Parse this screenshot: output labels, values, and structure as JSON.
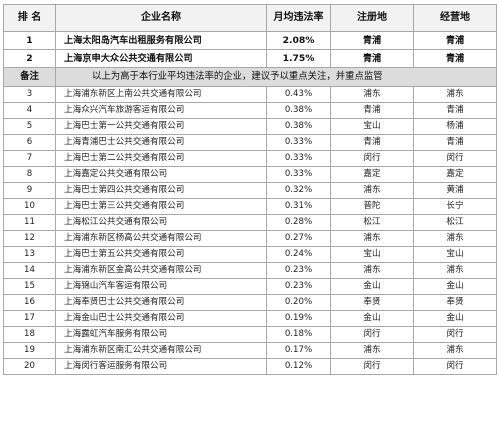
{
  "header": {
    "rank": "排 名",
    "name": "企业名称",
    "rate": "月均违法率",
    "registered": "注册地",
    "operating": "经营地"
  },
  "top_rows": [
    {
      "rank": "1",
      "name": "上海太阳岛汽车出租服务有限公司",
      "rate": "2.08%",
      "registered": "青浦",
      "operating": "青浦"
    },
    {
      "rank": "2",
      "name": "上海京申大众公共交通有限公司",
      "rate": "1.75%",
      "registered": "青浦",
      "operating": "青浦"
    }
  ],
  "note": {
    "label": "备注",
    "text": "以上为高于本行业平均违法率的企业，建议予以重点关注，并重点监管"
  },
  "rows": [
    {
      "rank": "3",
      "name": "上海浦东新区上南公共交通有限公司",
      "rate": "0.43%",
      "registered": "浦东",
      "operating": "浦东"
    },
    {
      "rank": "4",
      "name": "上海众兴汽车旅游客运有限公司",
      "rate": "0.38%",
      "registered": "青浦",
      "operating": "青浦"
    },
    {
      "rank": "5",
      "name": "上海巴士第一公共交通有限公司",
      "rate": "0.38%",
      "registered": "宝山",
      "operating": "杨浦"
    },
    {
      "rank": "6",
      "name": "上海青浦巴士公共交通有限公司",
      "rate": "0.33%",
      "registered": "青浦",
      "operating": "青浦"
    },
    {
      "rank": "7",
      "name": "上海巴士第二公共交通有限公司",
      "rate": "0.33%",
      "registered": "闵行",
      "operating": "闵行"
    },
    {
      "rank": "8",
      "name": "上海嘉定公共交通有限公司",
      "rate": "0.33%",
      "registered": "嘉定",
      "operating": "嘉定"
    },
    {
      "rank": "9",
      "name": "上海巴士第四公共交通有限公司",
      "rate": "0.32%",
      "registered": "浦东",
      "operating": "黄浦"
    },
    {
      "rank": "10",
      "name": "上海巴士第三公共交通有限公司",
      "rate": "0.31%",
      "registered": "普陀",
      "operating": "长宁"
    },
    {
      "rank": "11",
      "name": "上海松江公共交通有限公司",
      "rate": "0.28%",
      "registered": "松江",
      "operating": "松江"
    },
    {
      "rank": "12",
      "name": "上海浦东新区杨高公共交通有限公司",
      "rate": "0.27%",
      "registered": "浦东",
      "operating": "浦东"
    },
    {
      "rank": "13",
      "name": "上海巴士第五公共交通有限公司",
      "rate": "0.24%",
      "registered": "宝山",
      "operating": "宝山"
    },
    {
      "rank": "14",
      "name": "上海浦东新区金高公共交通有限公司",
      "rate": "0.23%",
      "registered": "浦东",
      "operating": "浦东"
    },
    {
      "rank": "15",
      "name": "上海锦山汽车客运有限公司",
      "rate": "0.23%",
      "registered": "金山",
      "operating": "金山"
    },
    {
      "rank": "16",
      "name": "上海奉贤巴士公共交通有限公司",
      "rate": "0.20%",
      "registered": "奉贤",
      "operating": "奉贤"
    },
    {
      "rank": "17",
      "name": "上海金山巴士公共交通有限公司",
      "rate": "0.19%",
      "registered": "金山",
      "operating": "金山"
    },
    {
      "rank": "18",
      "name": "上海露虹汽车服务有限公司",
      "rate": "0.18%",
      "registered": "闵行",
      "operating": "闵行"
    },
    {
      "rank": "19",
      "name": "上海浦东新区南汇公共交通有限公司",
      "rate": "0.17%",
      "registered": "浦东",
      "operating": "浦东"
    },
    {
      "rank": "20",
      "name": "上海闵行客运服务有限公司",
      "rate": "0.12%",
      "registered": "闵行",
      "operating": "闵行"
    }
  ]
}
